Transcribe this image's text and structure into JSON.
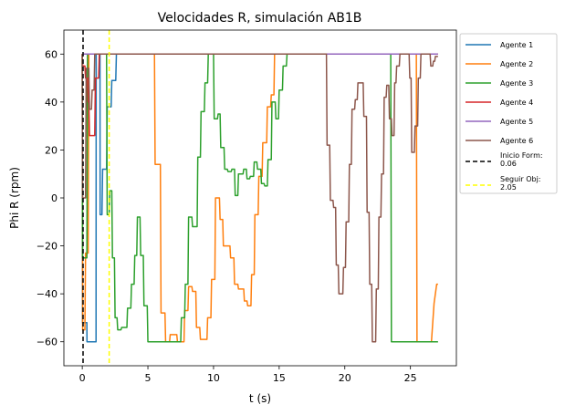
{
  "chart_data": {
    "type": "line",
    "title": "Velocidades R, simulación AB1B",
    "xlabel": "t (s)",
    "ylabel": "Phi R (rpm)",
    "xlim": [
      -1.4,
      28.5
    ],
    "ylim": [
      -70,
      70
    ],
    "xticks": [
      0,
      5,
      10,
      15,
      20,
      25
    ],
    "yticks": [
      -60,
      -40,
      -20,
      0,
      20,
      40,
      60
    ],
    "grid": false,
    "legend_position": "outside-right",
    "series": [
      {
        "name": "Agente 1",
        "color": "#1f77b4",
        "points": [
          [
            0,
            60
          ],
          [
            0.02,
            -52
          ],
          [
            0.35,
            -52
          ],
          [
            0.36,
            -60
          ],
          [
            1.05,
            -60
          ],
          [
            1.06,
            60
          ],
          [
            1.35,
            60
          ],
          [
            1.36,
            -7
          ],
          [
            1.5,
            -7
          ],
          [
            1.55,
            12
          ],
          [
            1.85,
            12
          ],
          [
            1.9,
            38
          ],
          [
            2.2,
            38
          ],
          [
            2.25,
            49
          ],
          [
            2.55,
            49
          ],
          [
            2.6,
            60
          ],
          [
            27,
            60
          ]
        ]
      },
      {
        "name": "Agente 2",
        "color": "#ff7f0e",
        "points": [
          [
            0,
            60
          ],
          [
            0.03,
            -55
          ],
          [
            0.2,
            -55
          ],
          [
            0.25,
            -23
          ],
          [
            0.45,
            -23
          ],
          [
            0.5,
            60
          ],
          [
            5.5,
            60
          ],
          [
            5.55,
            14
          ],
          [
            5.95,
            14
          ],
          [
            6,
            -48
          ],
          [
            6.3,
            -48
          ],
          [
            6.35,
            -60
          ],
          [
            6.65,
            -60
          ],
          [
            6.7,
            -57
          ],
          [
            7.2,
            -57
          ],
          [
            7.25,
            -60
          ],
          [
            7.75,
            -60
          ],
          [
            7.8,
            -47
          ],
          [
            8.05,
            -47
          ],
          [
            8.1,
            -37
          ],
          [
            8.35,
            -37
          ],
          [
            8.4,
            -39
          ],
          [
            8.65,
            -39
          ],
          [
            8.7,
            -54
          ],
          [
            8.95,
            -54
          ],
          [
            9,
            -59
          ],
          [
            9.5,
            -59
          ],
          [
            9.55,
            -50
          ],
          [
            9.8,
            -50
          ],
          [
            9.85,
            -34
          ],
          [
            10.1,
            -34
          ],
          [
            10.15,
            0
          ],
          [
            10.45,
            0
          ],
          [
            10.5,
            -9
          ],
          [
            10.7,
            -9
          ],
          [
            10.75,
            -20
          ],
          [
            11.25,
            -20
          ],
          [
            11.3,
            -25
          ],
          [
            11.55,
            -25
          ],
          [
            11.6,
            -36
          ],
          [
            11.85,
            -36
          ],
          [
            11.9,
            -38
          ],
          [
            12.3,
            -38
          ],
          [
            12.35,
            -43
          ],
          [
            12.55,
            -43
          ],
          [
            12.6,
            -45
          ],
          [
            12.85,
            -45
          ],
          [
            12.9,
            -32
          ],
          [
            13.1,
            -32
          ],
          [
            13.15,
            -7
          ],
          [
            13.4,
            -7
          ],
          [
            13.45,
            9
          ],
          [
            13.7,
            9
          ],
          [
            13.75,
            23
          ],
          [
            14.05,
            23
          ],
          [
            14.1,
            38
          ],
          [
            14.35,
            38
          ],
          [
            14.4,
            43
          ],
          [
            14.6,
            43
          ],
          [
            14.65,
            60
          ],
          [
            25.45,
            60
          ],
          [
            25.5,
            -60
          ],
          [
            26.55,
            -60
          ],
          [
            26.6,
            -60
          ],
          [
            26.8,
            -44
          ],
          [
            27.0,
            -36
          ],
          [
            27.1,
            -36
          ]
        ]
      },
      {
        "name": "Agente 3",
        "color": "#2ca02c",
        "points": [
          [
            0,
            60
          ],
          [
            0.02,
            -25
          ],
          [
            0.35,
            -25
          ],
          [
            0.4,
            60
          ],
          [
            1.85,
            60
          ],
          [
            1.9,
            -7
          ],
          [
            2.05,
            -7
          ],
          [
            2.1,
            3
          ],
          [
            2.25,
            3
          ],
          [
            2.3,
            -25
          ],
          [
            2.45,
            -25
          ],
          [
            2.5,
            -50
          ],
          [
            2.65,
            -50
          ],
          [
            2.7,
            -55
          ],
          [
            2.95,
            -55
          ],
          [
            3.0,
            -54
          ],
          [
            3.4,
            -54
          ],
          [
            3.45,
            -46
          ],
          [
            3.7,
            -46
          ],
          [
            3.75,
            -36
          ],
          [
            3.95,
            -36
          ],
          [
            4.0,
            -24
          ],
          [
            4.15,
            -24
          ],
          [
            4.2,
            -8
          ],
          [
            4.4,
            -8
          ],
          [
            4.45,
            -24
          ],
          [
            4.65,
            -24
          ],
          [
            4.7,
            -45
          ],
          [
            4.95,
            -45
          ],
          [
            5.0,
            -60
          ],
          [
            7.5,
            -60
          ],
          [
            7.55,
            -50
          ],
          [
            7.8,
            -50
          ],
          [
            7.85,
            -36
          ],
          [
            8.05,
            -36
          ],
          [
            8.1,
            -8
          ],
          [
            8.35,
            -8
          ],
          [
            8.4,
            -12
          ],
          [
            8.75,
            -12
          ],
          [
            8.8,
            17
          ],
          [
            9.0,
            17
          ],
          [
            9.05,
            36
          ],
          [
            9.3,
            36
          ],
          [
            9.35,
            48
          ],
          [
            9.55,
            48
          ],
          [
            9.6,
            60
          ],
          [
            10.0,
            60
          ],
          [
            10.05,
            33
          ],
          [
            10.3,
            33
          ],
          [
            10.35,
            35
          ],
          [
            10.5,
            35
          ],
          [
            10.55,
            21
          ],
          [
            10.8,
            21
          ],
          [
            10.85,
            12
          ],
          [
            11.05,
            12
          ],
          [
            11.1,
            11
          ],
          [
            11.35,
            11
          ],
          [
            11.4,
            12
          ],
          [
            11.6,
            12
          ],
          [
            11.65,
            1
          ],
          [
            11.85,
            1
          ],
          [
            11.9,
            10
          ],
          [
            12.25,
            10
          ],
          [
            12.3,
            12
          ],
          [
            12.5,
            12
          ],
          [
            12.55,
            8
          ],
          [
            12.75,
            8
          ],
          [
            12.8,
            9
          ],
          [
            13.05,
            9
          ],
          [
            13.1,
            15
          ],
          [
            13.3,
            15
          ],
          [
            13.35,
            12
          ],
          [
            13.6,
            12
          ],
          [
            13.65,
            6
          ],
          [
            13.85,
            6
          ],
          [
            13.9,
            5
          ],
          [
            14.1,
            5
          ],
          [
            14.15,
            16
          ],
          [
            14.4,
            16
          ],
          [
            14.45,
            40
          ],
          [
            14.7,
            40
          ],
          [
            14.75,
            33
          ],
          [
            14.95,
            33
          ],
          [
            15.0,
            45
          ],
          [
            15.25,
            45
          ],
          [
            15.3,
            55
          ],
          [
            15.55,
            55
          ],
          [
            15.6,
            60
          ],
          [
            23.5,
            60
          ],
          [
            23.55,
            -60
          ],
          [
            27.1,
            -60
          ]
        ]
      },
      {
        "name": "Agente 4",
        "color": "#d62728",
        "points": [
          [
            0,
            60
          ],
          [
            0.03,
            55
          ],
          [
            0.2,
            55
          ],
          [
            0.25,
            50
          ],
          [
            0.4,
            50
          ],
          [
            0.45,
            40
          ],
          [
            0.5,
            40
          ],
          [
            0.55,
            26
          ],
          [
            0.95,
            26
          ],
          [
            1.0,
            50
          ],
          [
            1.25,
            50
          ],
          [
            1.3,
            60
          ],
          [
            27.1,
            60
          ]
        ]
      },
      {
        "name": "Agente 5",
        "color": "#9467bd",
        "points": [
          [
            0,
            60
          ],
          [
            27.1,
            60
          ]
        ]
      },
      {
        "name": "Agente 6",
        "color": "#8c564b",
        "points": [
          [
            0,
            60
          ],
          [
            0.02,
            0
          ],
          [
            0.25,
            0
          ],
          [
            0.3,
            54
          ],
          [
            0.5,
            54
          ],
          [
            0.55,
            37
          ],
          [
            0.7,
            37
          ],
          [
            0.75,
            45
          ],
          [
            0.9,
            45
          ],
          [
            0.95,
            60
          ],
          [
            18.6,
            60
          ],
          [
            18.65,
            22
          ],
          [
            18.85,
            22
          ],
          [
            18.9,
            -1
          ],
          [
            19.1,
            -1
          ],
          [
            19.15,
            -4
          ],
          [
            19.3,
            -4
          ],
          [
            19.35,
            -28
          ],
          [
            19.5,
            -28
          ],
          [
            19.55,
            -40
          ],
          [
            19.85,
            -40
          ],
          [
            19.9,
            -29
          ],
          [
            20.05,
            -29
          ],
          [
            20.1,
            -10
          ],
          [
            20.3,
            -10
          ],
          [
            20.35,
            14
          ],
          [
            20.5,
            14
          ],
          [
            20.55,
            37
          ],
          [
            20.75,
            37
          ],
          [
            20.8,
            41
          ],
          [
            20.95,
            41
          ],
          [
            21.0,
            48
          ],
          [
            21.2,
            48
          ],
          [
            21.25,
            48
          ],
          [
            21.4,
            48
          ],
          [
            21.45,
            34
          ],
          [
            21.65,
            34
          ],
          [
            21.7,
            -6
          ],
          [
            21.85,
            -6
          ],
          [
            21.9,
            -36
          ],
          [
            22.05,
            -36
          ],
          [
            22.1,
            -60
          ],
          [
            22.35,
            -60
          ],
          [
            22.4,
            -38
          ],
          [
            22.55,
            -38
          ],
          [
            22.6,
            -8
          ],
          [
            22.75,
            -8
          ],
          [
            22.8,
            10
          ],
          [
            22.95,
            10
          ],
          [
            23.0,
            42
          ],
          [
            23.15,
            42
          ],
          [
            23.2,
            47
          ],
          [
            23.35,
            47
          ],
          [
            23.4,
            33
          ],
          [
            23.55,
            33
          ],
          [
            23.6,
            26
          ],
          [
            23.75,
            26
          ],
          [
            23.8,
            48
          ],
          [
            23.9,
            48
          ],
          [
            23.95,
            55
          ],
          [
            24.15,
            55
          ],
          [
            24.2,
            60
          ],
          [
            24.9,
            60
          ],
          [
            24.95,
            50
          ],
          [
            25.05,
            50
          ],
          [
            25.1,
            19
          ],
          [
            25.3,
            19
          ],
          [
            25.35,
            30
          ],
          [
            25.55,
            30
          ],
          [
            25.6,
            50
          ],
          [
            25.75,
            50
          ],
          [
            25.8,
            60
          ],
          [
            26.5,
            60
          ],
          [
            26.55,
            55
          ],
          [
            26.7,
            55
          ],
          [
            26.75,
            57
          ],
          [
            26.85,
            57
          ],
          [
            26.9,
            59
          ],
          [
            27.1,
            59
          ]
        ]
      }
    ],
    "vlines": [
      {
        "name": "Inicio Form:\n0.06",
        "x": 0.06,
        "color": "#000000",
        "style": "dashed"
      },
      {
        "name": "Seguir Obj:\n2.05",
        "x": 2.05,
        "color": "#ffff00",
        "style": "dashed"
      }
    ]
  }
}
